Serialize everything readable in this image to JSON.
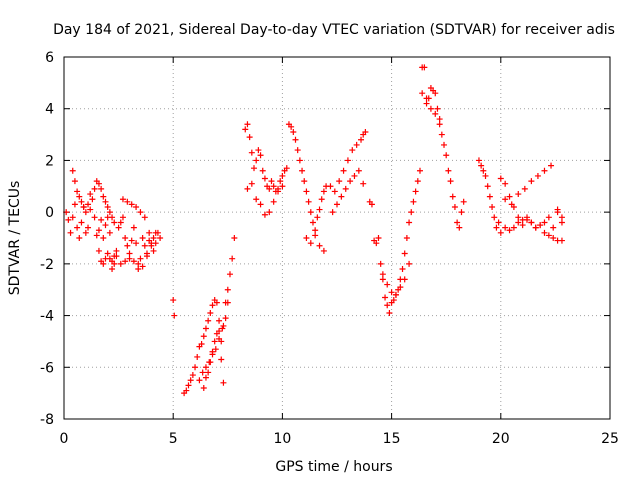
{
  "chart_data": {
    "type": "scatter",
    "title": "Day 184 of 2021, Sidereal Day-to-day VTEC variation (SDTVAR) for receiver adis",
    "xlabel": "GPS time / hours",
    "ylabel": "SDTVAR / TECUs",
    "xlim": [
      0,
      25
    ],
    "ylim": [
      -8,
      6
    ],
    "x_ticks": [
      "0",
      "5",
      "10",
      "15",
      "20",
      "25"
    ],
    "y_ticks": [
      "-8",
      "-6",
      "-4",
      "-2",
      "0",
      "2",
      "4",
      "6"
    ],
    "grid": true,
    "marker": "+",
    "series_color": "#ff0000",
    "series": [
      {
        "name": "SDTVAR",
        "x": [
          0.1,
          0.2,
          0.3,
          0.4,
          0.5,
          0.6,
          0.7,
          0.8,
          0.9,
          1.0,
          1.1,
          1.2,
          1.3,
          1.4,
          1.5,
          1.6,
          1.7,
          1.8,
          1.9,
          2.0,
          2.1,
          2.2,
          2.3,
          2.4,
          2.5,
          2.6,
          2.7,
          2.8,
          2.9,
          3.0,
          3.1,
          3.2,
          3.3,
          3.4,
          3.5,
          3.6,
          3.7,
          3.8,
          3.9,
          4.0,
          4.1,
          4.2,
          4.3,
          4.4,
          0.4,
          0.5,
          0.6,
          0.7,
          0.8,
          0.9,
          1.0,
          1.1,
          1.2,
          1.4,
          1.5,
          1.6,
          1.7,
          1.8,
          1.9,
          2.0,
          2.1,
          2.2,
          2.3,
          1.6,
          1.7,
          1.8,
          1.9,
          2.0,
          2.1,
          2.2,
          2.3,
          2.4,
          2.6,
          2.8,
          3.0,
          3.2,
          3.4,
          3.6,
          3.8,
          4.0,
          4.2,
          2.7,
          2.9,
          3.1,
          3.3,
          3.5,
          3.7,
          3.9,
          4.1,
          5.0,
          5.05,
          5.5,
          5.6,
          5.7,
          5.8,
          5.9,
          6.0,
          6.1,
          6.2,
          6.3,
          6.4,
          6.5,
          6.6,
          6.7,
          6.8,
          6.9,
          7.0,
          7.1,
          7.2,
          7.3,
          7.4,
          7.5,
          7.6,
          7.7,
          7.8,
          6.4,
          6.5,
          6.6,
          6.7,
          6.8,
          6.9,
          7.0,
          7.1,
          7.2,
          7.3,
          6.2,
          6.35,
          6.5,
          6.65,
          6.8,
          6.95,
          7.1,
          7.25,
          7.4,
          7.5,
          8.3,
          8.4,
          8.5,
          8.6,
          8.7,
          8.8,
          8.9,
          9.0,
          9.1,
          9.2,
          9.3,
          9.4,
          9.5,
          9.6,
          9.7,
          9.8,
          9.9,
          10.0,
          10.1,
          10.2,
          8.4,
          8.6,
          8.8,
          9.0,
          9.2,
          9.4,
          9.6,
          9.8,
          10.0,
          10.3,
          10.4,
          10.5,
          10.6,
          10.7,
          10.8,
          10.9,
          11.0,
          11.1,
          11.2,
          11.3,
          11.4,
          11.5,
          11.6,
          11.7,
          11.8,
          11.9,
          12.0,
          11.1,
          11.3,
          11.5,
          11.7,
          11.9,
          12.2,
          12.4,
          12.6,
          12.8,
          13.0,
          13.2,
          13.4,
          13.6,
          13.7,
          13.8,
          12.3,
          12.5,
          12.7,
          12.9,
          13.1,
          13.3,
          13.5,
          13.7,
          14.0,
          14.1,
          14.2,
          14.3,
          14.4,
          14.5,
          14.6,
          14.7,
          14.8,
          14.9,
          15.0,
          15.1,
          15.2,
          15.3,
          15.4,
          15.5,
          15.6,
          15.7,
          15.8,
          15.9,
          16.0,
          16.1,
          16.2,
          16.3,
          14.6,
          14.8,
          15.0,
          15.2,
          15.4,
          15.6,
          15.8,
          16.4,
          16.5,
          16.6,
          16.7,
          16.8,
          16.9,
          17.0,
          17.1,
          17.2,
          17.3,
          17.4,
          17.5,
          17.6,
          17.7,
          17.8,
          17.9,
          18.0,
          18.1,
          18.2,
          18.3,
          16.4,
          16.6,
          16.8,
          17.0,
          17.2,
          19.0,
          19.1,
          19.2,
          19.3,
          19.4,
          19.5,
          19.6,
          19.7,
          19.8,
          19.9,
          20.0,
          20.2,
          20.4,
          20.6,
          20.8,
          21.0,
          21.2,
          21.4,
          21.6,
          21.8,
          22.0,
          22.2,
          22.4,
          22.6,
          22.8,
          20.0,
          20.2,
          20.4,
          20.6,
          20.8,
          21.0,
          21.2,
          21.4,
          21.6,
          21.8,
          22.0,
          22.2,
          22.4,
          22.6,
          22.8,
          20.2,
          20.5,
          20.8,
          21.1,
          21.4,
          21.7,
          22.0,
          22.3,
          22.6,
          22.8
        ],
        "y": [
          0.0,
          -0.3,
          -0.8,
          -0.2,
          0.3,
          -0.6,
          -1.0,
          -0.4,
          0.2,
          -0.8,
          -0.6,
          0.1,
          0.5,
          -0.2,
          -0.9,
          -0.7,
          -0.3,
          -1.0,
          -0.5,
          -0.2,
          -0.8,
          -1.9,
          -1.7,
          -1.5,
          -0.6,
          -0.4,
          -0.2,
          -1.0,
          -1.3,
          -1.6,
          -1.1,
          -0.6,
          -1.2,
          -2.0,
          -1.8,
          -1.0,
          -1.3,
          -1.6,
          -1.1,
          -1.3,
          -1.5,
          -1.2,
          -0.8,
          -1.0,
          1.6,
          1.2,
          0.8,
          0.6,
          0.4,
          0.2,
          0.0,
          0.3,
          0.7,
          0.9,
          1.2,
          1.1,
          0.9,
          0.6,
          0.4,
          0.2,
          0.0,
          -0.2,
          -0.4,
          -1.5,
          -1.9,
          -2.0,
          -1.8,
          -1.6,
          -1.8,
          -2.2,
          -2.0,
          -1.7,
          -2.0,
          -1.9,
          -1.8,
          -1.9,
          -2.2,
          -2.1,
          -1.7,
          -1.2,
          -0.8,
          0.5,
          0.4,
          0.3,
          0.2,
          0.0,
          -0.2,
          -0.8,
          -1.0,
          -3.4,
          -4.0,
          -7.0,
          -6.9,
          -6.7,
          -6.5,
          -6.3,
          -6.0,
          -5.6,
          -5.2,
          -5.1,
          -4.8,
          -4.5,
          -4.2,
          -3.9,
          -3.6,
          -3.4,
          -3.5,
          -4.2,
          -5.0,
          -4.4,
          -3.5,
          -3.0,
          -2.4,
          -1.8,
          -1.0,
          -6.8,
          -6.4,
          -6.2,
          -5.8,
          -5.5,
          -5.0,
          -4.7,
          -4.6,
          -5.7,
          -6.6,
          -6.5,
          -6.2,
          -6.0,
          -5.8,
          -5.4,
          -5.3,
          -4.9,
          -4.5,
          -4.1,
          -3.5,
          3.2,
          3.4,
          2.9,
          2.3,
          1.7,
          2.0,
          2.4,
          2.2,
          1.6,
          1.3,
          1.0,
          0.9,
          1.2,
          1.0,
          0.8,
          0.9,
          1.2,
          1.4,
          1.6,
          1.7,
          0.9,
          1.1,
          0.5,
          0.3,
          -0.1,
          0.0,
          0.4,
          0.8,
          1.0,
          3.4,
          3.3,
          3.1,
          2.8,
          2.4,
          2.0,
          1.6,
          1.2,
          0.8,
          0.4,
          0.0,
          -0.4,
          -0.7,
          -0.2,
          0.1,
          0.5,
          0.8,
          1.0,
          -1.0,
          -1.2,
          -0.9,
          -1.3,
          -1.5,
          1.0,
          0.8,
          1.2,
          1.6,
          2.0,
          2.4,
          2.6,
          2.8,
          3.0,
          3.1,
          0.0,
          0.3,
          0.6,
          0.9,
          1.2,
          1.4,
          1.6,
          1.1,
          0.4,
          0.3,
          -1.1,
          -1.2,
          -1.0,
          -2.0,
          -2.6,
          -3.3,
          -3.6,
          -3.9,
          -3.5,
          -3.4,
          -3.2,
          -3.0,
          -2.6,
          -2.2,
          -1.6,
          -1.0,
          -0.4,
          0.0,
          0.4,
          0.8,
          1.2,
          1.6,
          -2.4,
          -2.8,
          -3.1,
          -3.2,
          -2.9,
          -2.6,
          -2.0,
          5.6,
          5.6,
          4.2,
          4.4,
          4.8,
          4.7,
          4.6,
          4.0,
          3.6,
          3.0,
          2.6,
          2.2,
          1.6,
          1.2,
          0.6,
          0.2,
          -0.4,
          -0.6,
          0.0,
          0.4,
          4.6,
          4.4,
          4.0,
          3.8,
          3.4,
          2.0,
          1.8,
          1.6,
          1.4,
          1.0,
          0.6,
          0.2,
          -0.2,
          -0.6,
          -0.4,
          1.3,
          1.1,
          0.6,
          0.2,
          -0.2,
          -0.3,
          -0.2,
          -0.4,
          -0.6,
          -0.5,
          -0.4,
          -0.2,
          -0.6,
          0.0,
          -0.4,
          -0.8,
          -0.6,
          -0.7,
          -0.6,
          -0.4,
          -0.5,
          -0.3,
          -0.4,
          -0.6,
          -0.5,
          -0.8,
          -0.9,
          -1.0,
          -1.1,
          -1.1,
          0.5,
          0.3,
          0.7,
          0.9,
          1.2,
          1.4,
          1.6,
          1.8,
          0.1,
          -0.2
        ]
      }
    ]
  }
}
